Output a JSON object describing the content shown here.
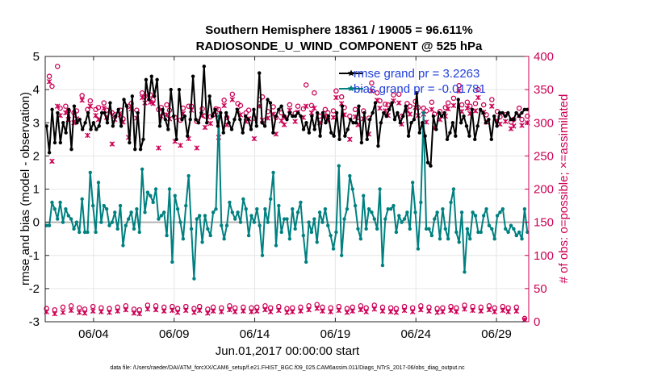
{
  "chart_data": {
    "type": "line",
    "title": "Southern Hemisphere 18361 / 19005 = 96.611%",
    "subtitle": "RADIOSONDE_U_WIND_COMPONENT @ 525 hPa",
    "xlabel": "Jun.01,2017 00:00:00 start",
    "ylabel_left": "rmse and bias (model - observation)",
    "ylabel_right": "# of obs: o=possible; ×=assimilated",
    "footer": "data file: /Users/raeder/DAI/ATM_forcXX/CAM6_setup/f.e21.FHIST_BGC.f09_025.CAM6assim.011/Diags_NTrS_2017-06/obs_diag_output.nc",
    "xlim": [
      1.0,
      31.0
    ],
    "x_ticks": [
      4,
      9,
      14,
      19,
      24,
      29
    ],
    "x_ticklabels": [
      "06/04",
      "06/09",
      "06/14",
      "06/19",
      "06/24",
      "06/29"
    ],
    "ylim_left": [
      -3,
      5
    ],
    "y_ticks_left": [
      "-3",
      "-2",
      "-1",
      "0",
      "1",
      "2",
      "3",
      "4",
      "5"
    ],
    "ylim_right": [
      0,
      400
    ],
    "y_ticks_right": [
      "0",
      "50",
      "100",
      "150",
      "200",
      "250",
      "300",
      "350",
      "400"
    ],
    "zero_line": 0,
    "legend": {
      "rmse": "rmse grand pr = 3.2263",
      "bias": "bias grand pr = -0.01781"
    },
    "colors": {
      "rmse": "#000000",
      "bias": "#008080",
      "obs": "#cc0055",
      "zero": "#b3b3b3",
      "grid": "#e6e6e6",
      "legend_text": "#1f3fdc"
    },
    "series": [
      {
        "name": "rmse",
        "axis": "left",
        "values": [
          2.9,
          2.1,
          3.4,
          2.4,
          3.3,
          2.4,
          3.0,
          2.7,
          3.4,
          2.2,
          3.5,
          3.0,
          3.1,
          2.8,
          3.0,
          3.3,
          2.8,
          3.0,
          2.8,
          2.9,
          3.3,
          3.3,
          3.0,
          3.6,
          2.9,
          3.2,
          3.4,
          2.9,
          3.7,
          3.5,
          2.4,
          3.8,
          2.2,
          3.3,
          2.2,
          2.5,
          4.3,
          3.7,
          4.4,
          3.8,
          4.3,
          2.9,
          3.4,
          3.1,
          2.8,
          4.0,
          3.2,
          2.5,
          4.0,
          3.1,
          3.2,
          2.6,
          3.1,
          4.4,
          3.1,
          3.0,
          3.3,
          4.7,
          3.0,
          3.8,
          3.2,
          3.4,
          2.9,
          3.3,
          2.7,
          3.3,
          3.0,
          2.8,
          3.1,
          3.4,
          3.1,
          2.7,
          3.2,
          3.1,
          2.8,
          3.4,
          2.9,
          4.5,
          3.0,
          2.9,
          3.7,
          3.6,
          2.7,
          3.2,
          3.4,
          3.5,
          3.2,
          3.1,
          3.3,
          3.2,
          3.2,
          3.3,
          3.2,
          2.8,
          3.0,
          2.7,
          3.2,
          2.8,
          3.3,
          2.6,
          3.3,
          3.0,
          3.2,
          2.7,
          2.6,
          3.3,
          2.5,
          3.5,
          2.6,
          2.8,
          3.1,
          3.0,
          3.0,
          3.5,
          2.4,
          3.3,
          2.5,
          3.1,
          3.3,
          3.6,
          2.3,
          3.0,
          3.3,
          3.2,
          3.4,
          3.6,
          3.1,
          3.3,
          3.0,
          3.2,
          3.5,
          2.6,
          3.0,
          3.1,
          3.9,
          2.7,
          3.0,
          2.6,
          1.8,
          1.7,
          3.2,
          2.8,
          3.3,
          3.2,
          3.3,
          2.5,
          2.7,
          3.0,
          2.6,
          3.7,
          3.0,
          3.2,
          2.9,
          2.6,
          3.4,
          2.5,
          2.9,
          3.4,
          3.3,
          3.0,
          3.1,
          2.5,
          3.2,
          2.9,
          3.3,
          3.3,
          3.2,
          3.3,
          3.1,
          3.1,
          3.3,
          3.2,
          3.3,
          3.4,
          3.4
        ]
      },
      {
        "name": "bias",
        "axis": "left",
        "values": [
          -0.1,
          -0.1,
          0.6,
          0.4,
          0.1,
          0.6,
          0.0,
          0.4,
          0.2,
          0.1,
          -0.2,
          0.0,
          -0.3,
          0.7,
          -0.3,
          -0.3,
          1.5,
          0.5,
          -0.3,
          1.2,
          0.0,
          0.5,
          0.4,
          -0.1,
          0.0,
          0.3,
          -0.2,
          0.5,
          -0.7,
          -0.1,
          0.1,
          0.3,
          -0.2,
          0.4,
          -0.3,
          1.6,
          0.3,
          0.9,
          0.8,
          0.6,
          1.0,
          0.1,
          0.2,
          0.3,
          -0.4,
          1.0,
          -1.2,
          0.8,
          0.4,
          0.0,
          -0.5,
          0.5,
          1.4,
          -0.2,
          -1.7,
          0.1,
          0.2,
          -0.6,
          0.2,
          -0.2,
          -0.4,
          0.3,
          0.4,
          3.2,
          -0.1,
          -0.5,
          -0.1,
          0.6,
          0.3,
          0.1,
          0.3,
          0.0,
          0.7,
          0.4,
          -0.4,
          0.2,
          0.0,
          0.4,
          -0.1,
          -1.0,
          0.4,
          0.0,
          0.7,
          1.5,
          -0.7,
          0.5,
          -0.3,
          0.1,
          0.1,
          -0.5,
          0.4,
          -0.2,
          0.3,
          0.6,
          -0.4,
          -1.2,
          0.0,
          -0.3,
          0.1,
          -0.6,
          0.3,
          0.0,
          0.4,
          -0.1,
          -0.4,
          -0.8,
          -0.3,
          1.7,
          -1.0,
          0.1,
          0.4,
          1.4,
          1.0,
          0.5,
          -0.2,
          -0.5,
          0.8,
          -0.2,
          0.4,
          0.3,
          0.1,
          -0.2,
          1.0,
          -1.3,
          0.1,
          0.4,
          0.4,
          0.5,
          -0.3,
          0.2,
          0.0,
          0.1,
          0.3,
          -0.2,
          1.2,
          0.3,
          -0.8,
          0.6,
          3.3,
          -0.2,
          -0.2,
          -0.4,
          0.1,
          0.3,
          -0.5,
          0.4,
          -0.2,
          -0.5,
          0.6,
          1.0,
          -0.3,
          -0.6,
          0.3,
          -1.5,
          -0.2,
          -0.5,
          0.3,
          0.2,
          -0.3,
          -0.3,
          0.2,
          0.4,
          -0.1,
          -0.2,
          -0.5,
          0.2,
          0.3,
          0.4,
          -0.2,
          -0.3,
          -0.1,
          -0.2,
          -0.4,
          -0.3,
          -0.5,
          0.4,
          -0.3
        ]
      },
      {
        "name": "possible",
        "axis": "right",
        "marker": "o",
        "values": [
          20,
          370,
          355,
          18,
          385,
          322,
          22,
          325,
          318,
          24,
          315,
          318,
          21,
          341,
          19,
          320,
          333,
          23,
          320,
          323,
          21,
          330,
          319,
          20,
          315,
          312,
          22,
          319,
          306,
          24,
          325,
          329,
          19,
          319,
          18,
          345,
          340,
          25,
          342,
          335,
          24,
          320,
          323,
          22,
          327,
          319,
          23,
          308,
          20,
          304,
          322,
          23,
          325,
          325,
          20,
          302,
          23,
          321,
          310,
          19,
          309,
          22,
          321,
          320,
          21,
          334,
          308,
          24,
          343,
          21,
          329,
          326,
          22,
          315,
          319,
          21,
          307,
          22,
          335,
          339,
          24,
          317,
          21,
          324,
          308,
          23,
          315,
          309,
          20,
          327,
          21,
          314,
          325,
          22,
          321,
          357,
          24,
          326,
          345,
          26,
          310,
          22,
          320,
          315,
          21,
          318,
          348,
          23,
          339,
          323,
          20,
          310,
          22,
          320,
          308,
          24,
          318,
          21,
          307,
          360,
          25,
          345,
          333,
          22,
          328,
          327,
          21,
          342,
          20,
          343,
          310,
          23,
          329,
          325,
          21,
          332,
          323,
          24,
          322,
          318,
          22,
          331,
          313,
          20,
          317,
          21,
          323,
          330,
          23,
          337,
          21,
          356,
          327,
          25,
          331,
          325,
          23,
          329,
          350,
          22,
          327,
          312,
          24,
          335,
          21,
          317,
          309,
          23,
          312,
          21,
          301,
          305,
          22,
          322,
          305,
          5,
          310
        ]
      },
      {
        "name": "assimilated",
        "axis": "right",
        "marker": "x",
        "values": [
          15,
          362,
          242,
          12,
          325,
          311,
          14,
          315,
          305,
          17,
          300,
          306,
          14,
          334,
          13,
          281,
          325,
          16,
          311,
          305,
          15,
          322,
          308,
          14,
          268,
          305,
          16,
          312,
          301,
          18,
          278,
          321,
          13,
          307,
          12,
          338,
          330,
          19,
          331,
          329,
          18,
          262,
          310,
          16,
          312,
          306,
          17,
          272,
          14,
          266,
          314,
          17,
          276,
          319,
          14,
          262,
          17,
          311,
          293,
          13,
          299,
          16,
          312,
          278,
          15,
          326,
          297,
          18,
          335,
          15,
          319,
          312,
          16,
          302,
          306,
          15,
          276,
          16,
          325,
          304,
          18,
          307,
          15,
          313,
          283,
          17,
          303,
          297,
          14,
          319,
          15,
          302,
          316,
          16,
          308,
          325,
          18,
          315,
          322,
          20,
          300,
          16,
          310,
          304,
          15,
          308,
          338,
          17,
          329,
          312,
          14,
          275,
          16,
          309,
          297,
          18,
          306,
          15,
          283,
          348,
          19,
          334,
          322,
          16,
          318,
          311,
          15,
          333,
          14,
          330,
          298,
          17,
          319,
          313,
          15,
          323,
          311,
          18,
          313,
          301,
          16,
          320,
          292,
          14,
          305,
          15,
          310,
          321,
          17,
          326,
          15,
          348,
          317,
          19,
          322,
          314,
          17,
          318,
          338,
          16,
          316,
          301,
          18,
          325,
          15,
          303,
          298,
          17,
          302,
          15,
          291,
          295,
          16,
          311,
          296,
          3,
          300
        ]
      }
    ]
  }
}
